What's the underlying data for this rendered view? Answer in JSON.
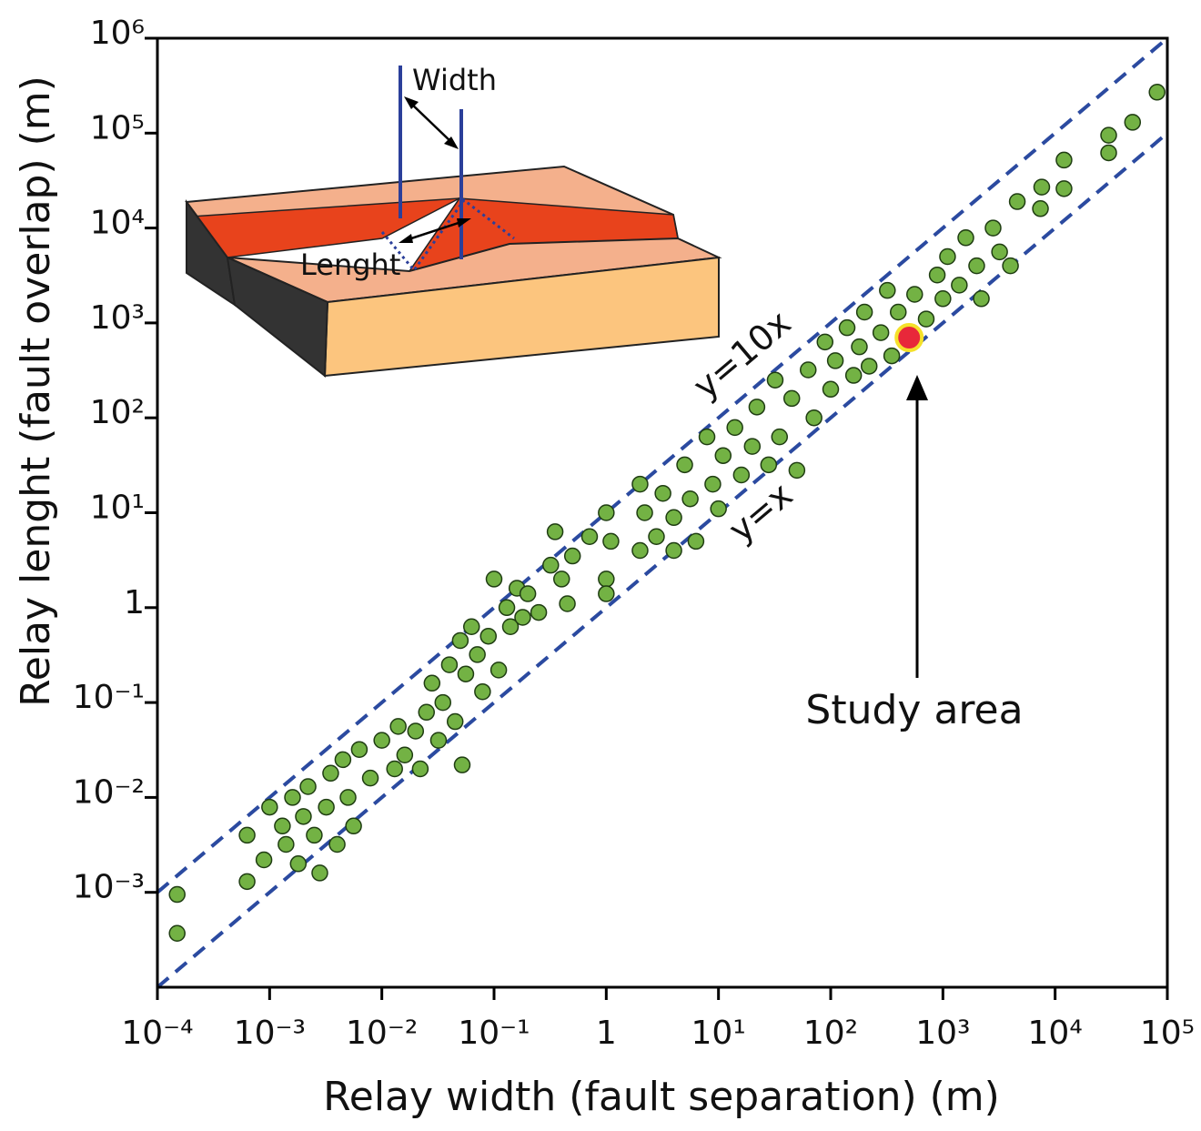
{
  "chart_data": {
    "type": "scatter",
    "x_label": "Relay width (fault separation) (m)",
    "y_label": "Relay lenght (fault overlap) (m)",
    "xscale": "log",
    "yscale": "log",
    "xlim": [
      0.0001,
      100000
    ],
    "ylim": [
      0.0001,
      1000000
    ],
    "xticks": [
      {
        "value": 0.0001,
        "label": "10⁻⁴"
      },
      {
        "value": 0.001,
        "label": "10⁻³"
      },
      {
        "value": 0.01,
        "label": "10⁻²"
      },
      {
        "value": 0.1,
        "label": "10⁻¹"
      },
      1,
      {
        "value": 10,
        "label": "10¹"
      },
      {
        "value": 100,
        "label": "10²"
      },
      {
        "value": 1000,
        "label": "10³"
      },
      {
        "value": 10000,
        "label": "10⁴"
      },
      {
        "value": 100000,
        "label": "10⁵"
      }
    ],
    "yticks": [
      {
        "value": 0.001,
        "label": "10⁻³"
      },
      {
        "value": 0.01,
        "label": "10⁻²"
      },
      {
        "value": 0.1,
        "label": "10⁻¹"
      },
      1,
      {
        "value": 10,
        "label": "10¹"
      },
      {
        "value": 100,
        "label": "10²"
      },
      {
        "value": 1000,
        "label": "10³"
      },
      {
        "value": 10000,
        "label": "10⁴"
      },
      {
        "value": 100000,
        "label": "10⁵"
      },
      {
        "value": 1000000,
        "label": "10⁶"
      }
    ],
    "series": [
      {
        "color": "#73b244",
        "edge": "#1f3d12",
        "size": 8.5,
        "x": [
          0.00015,
          0.00015,
          0.00063,
          0.00063,
          0.00089,
          0.001,
          0.0013,
          0.0014,
          0.0016,
          0.0018,
          0.002,
          0.0022,
          0.0025,
          0.0028,
          0.0032,
          0.0035,
          0.004,
          0.0045,
          0.005,
          0.0056,
          0.0063,
          0.0079,
          0.01,
          0.013,
          0.014,
          0.016,
          0.02,
          0.022,
          0.025,
          0.028,
          0.032,
          0.035,
          0.04,
          0.045,
          0.05,
          0.052,
          0.056,
          0.063,
          0.071,
          0.079,
          0.089,
          0.1,
          0.11,
          0.13,
          0.14,
          0.16,
          0.18,
          0.2,
          0.25,
          0.32,
          0.35,
          0.4,
          0.45,
          0.5,
          0.71,
          1,
          1,
          1,
          1.1,
          2,
          2,
          2.2,
          2.8,
          3.2,
          4,
          4,
          5,
          5.6,
          6.3,
          7.9,
          8.9,
          10,
          11,
          14,
          16,
          20,
          22,
          28,
          32,
          35,
          45,
          50,
          63,
          71,
          89,
          100,
          110,
          140,
          160,
          180,
          200,
          220,
          280,
          320,
          350,
          400,
          560,
          710,
          890,
          1000,
          1100,
          1400,
          1600,
          2000,
          2200,
          2800,
          3200,
          4000,
          4600,
          7400,
          7600,
          12000,
          12000,
          30000,
          30000,
          49000,
          81000
        ],
        "y": [
          0.00095,
          0.00037,
          0.004,
          0.0013,
          0.0022,
          0.0079,
          0.005,
          0.0032,
          0.01,
          0.002,
          0.0063,
          0.013,
          0.004,
          0.0016,
          0.0079,
          0.018,
          0.0032,
          0.025,
          0.01,
          0.005,
          0.032,
          0.016,
          0.04,
          0.02,
          0.056,
          0.028,
          0.05,
          0.02,
          0.079,
          0.16,
          0.04,
          0.1,
          0.25,
          0.063,
          0.45,
          0.022,
          0.2,
          0.63,
          0.32,
          0.13,
          0.5,
          2,
          0.22,
          1,
          0.63,
          1.6,
          0.79,
          1.4,
          0.89,
          2.8,
          6.3,
          2,
          1.1,
          3.5,
          5.6,
          10,
          2,
          1.4,
          5,
          20,
          4,
          10,
          5.6,
          16,
          8.9,
          4,
          32,
          14,
          5,
          63,
          20,
          11,
          40,
          79,
          25,
          50,
          130,
          32,
          250,
          63,
          160,
          28,
          320,
          100,
          630,
          200,
          400,
          890,
          280,
          560,
          1300,
          350,
          790,
          2200,
          450,
          1300,
          2000,
          1100,
          3200,
          1800,
          5000,
          2500,
          7900,
          4000,
          1800,
          10000,
          5600,
          4000,
          19000,
          16000,
          27000,
          26000,
          52000,
          62000,
          95000,
          130000,
          270000
        ]
      },
      {
        "color": "#e8283a",
        "edge": "#f5e12a",
        "size": 14,
        "x": [
          500
        ],
        "y": [
          700
        ]
      }
    ],
    "reference_lines": [
      {
        "label": "y=10x",
        "color": "#2b4aa0",
        "x": [
          0.0001,
          100000
        ],
        "y": [
          0.001,
          1000000
        ]
      },
      {
        "label": "y=x",
        "color": "#2b4aa0",
        "x": [
          0.0001,
          100000
        ],
        "y": [
          0.0001,
          100000
        ]
      }
    ],
    "annotation": "Study area",
    "inset_labels": [
      "Width",
      "Lenght"
    ]
  }
}
